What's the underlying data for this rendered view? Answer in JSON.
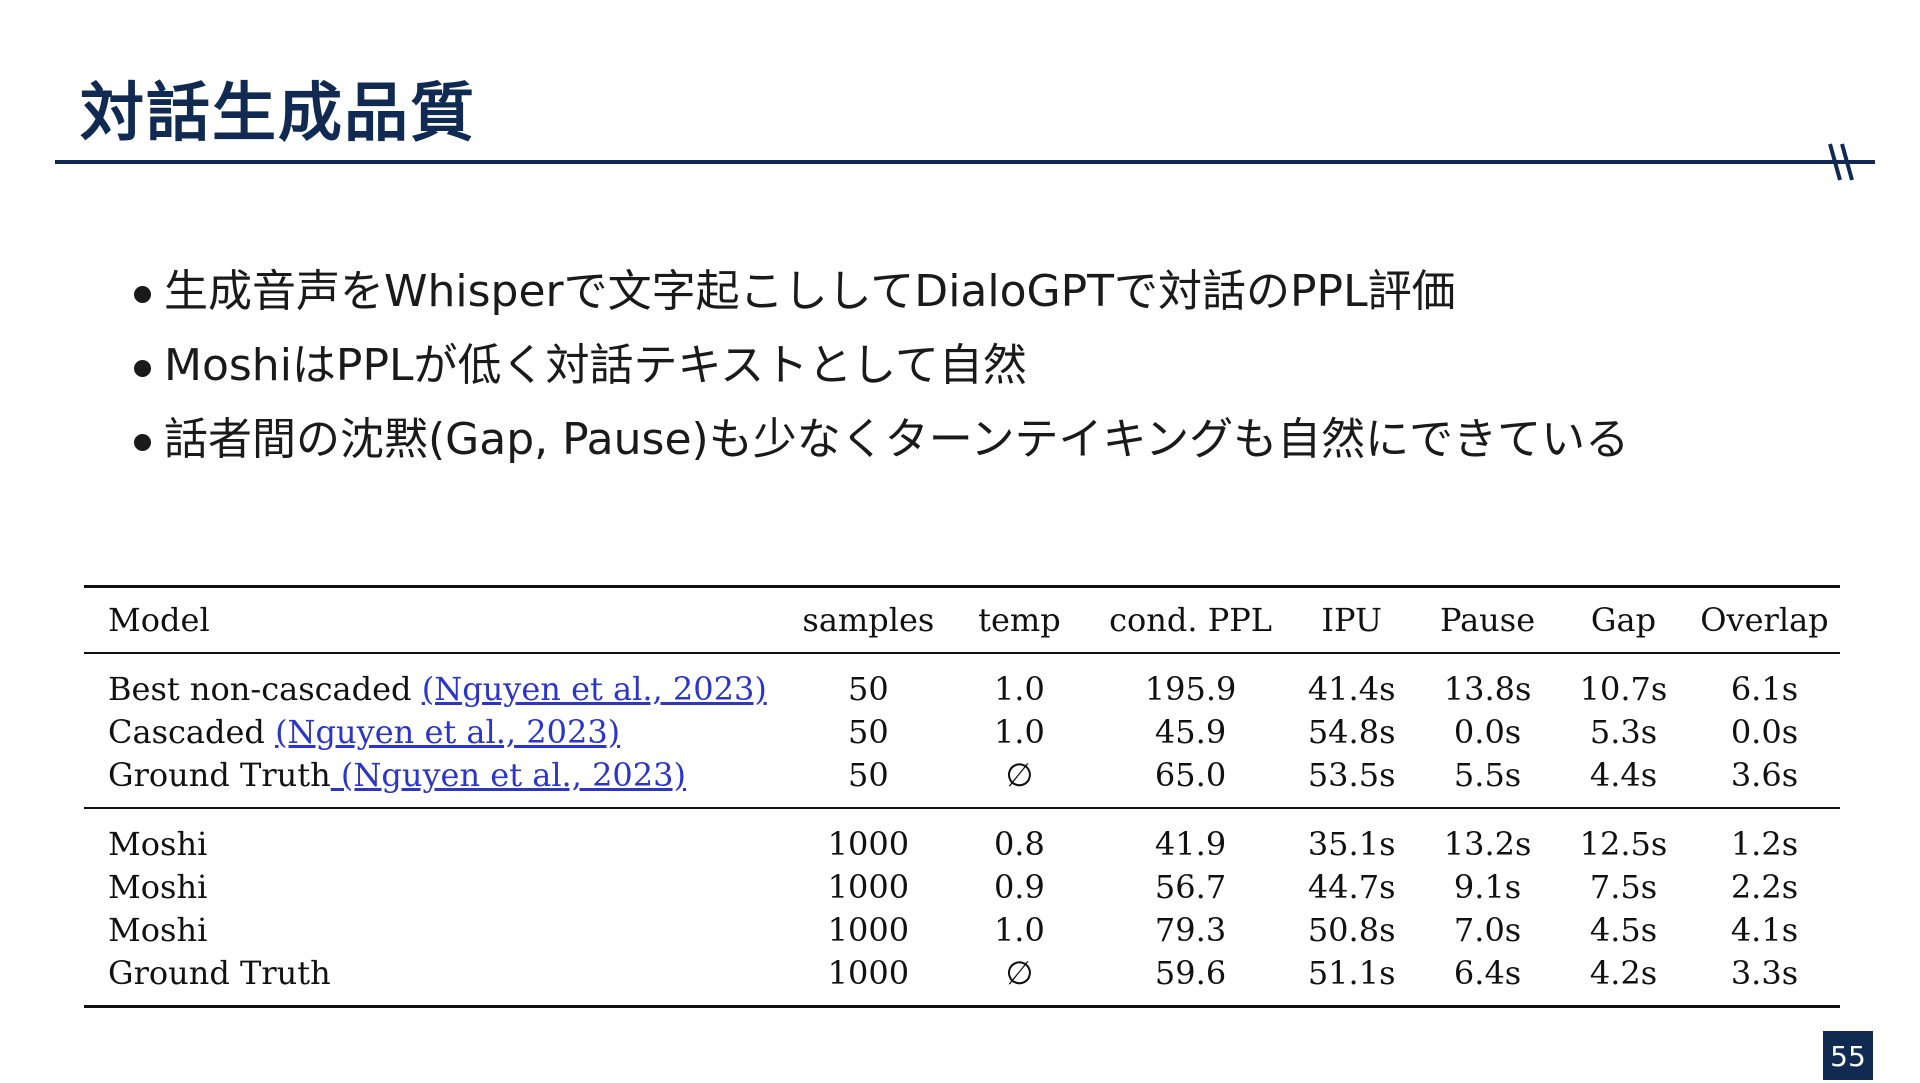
{
  "slide": {
    "title": "対話生成品質",
    "page_number": "55",
    "colors": {
      "navy": "#112a52",
      "citation_link": "#2b36c9"
    }
  },
  "bullets": [
    "生成音声をWhisperで文字起こししてDialoGPTで対話のPPL評価",
    "MoshiはPPLが低く対話テキストとして自然",
    "話者間の沈黙(Gap, Pause)も少なくターンテイキングも自然にできている"
  ],
  "table": {
    "headers": [
      "Model",
      "samples",
      "temp",
      "cond. PPL",
      "IPU",
      "Pause",
      "Gap",
      "Overlap"
    ],
    "group1": [
      {
        "model": "Best non-cascaded ",
        "cite": "(Nguyen et al., 2023)",
        "samples": "50",
        "temp": "1.0",
        "ppl": "195.9",
        "ipu": "41.4s",
        "pause": "13.8s",
        "gap": "10.7s",
        "overlap": "6.1s"
      },
      {
        "model": "Cascaded ",
        "cite": "(Nguyen et al., 2023)",
        "samples": "50",
        "temp": "1.0",
        "ppl": "45.9",
        "ipu": "54.8s",
        "pause": "0.0s",
        "gap": "5.3s",
        "overlap": "0.0s"
      },
      {
        "model": "Ground Truth",
        "cite": " (Nguyen et al., 2023)",
        "samples": "50",
        "temp": "∅",
        "ppl": "65.0",
        "ipu": "53.5s",
        "pause": "5.5s",
        "gap": "4.4s",
        "overlap": "3.6s"
      }
    ],
    "group2": [
      {
        "model": "Moshi",
        "samples": "1000",
        "temp": "0.8",
        "ppl": "41.9",
        "ipu": "35.1s",
        "pause": "13.2s",
        "gap": "12.5s",
        "overlap": "1.2s"
      },
      {
        "model": "Moshi",
        "samples": "1000",
        "temp": "0.9",
        "ppl": "56.7",
        "ipu": "44.7s",
        "pause": "9.1s",
        "gap": "7.5s",
        "overlap": "2.2s"
      },
      {
        "model": "Moshi",
        "samples": "1000",
        "temp": "1.0",
        "ppl": "79.3",
        "ipu": "50.8s",
        "pause": "7.0s",
        "gap": "4.5s",
        "overlap": "4.1s"
      },
      {
        "model": "Ground Truth",
        "samples": "1000",
        "temp": "∅",
        "ppl": "59.6",
        "ipu": "51.1s",
        "pause": "6.4s",
        "gap": "4.2s",
        "overlap": "3.3s"
      }
    ]
  }
}
